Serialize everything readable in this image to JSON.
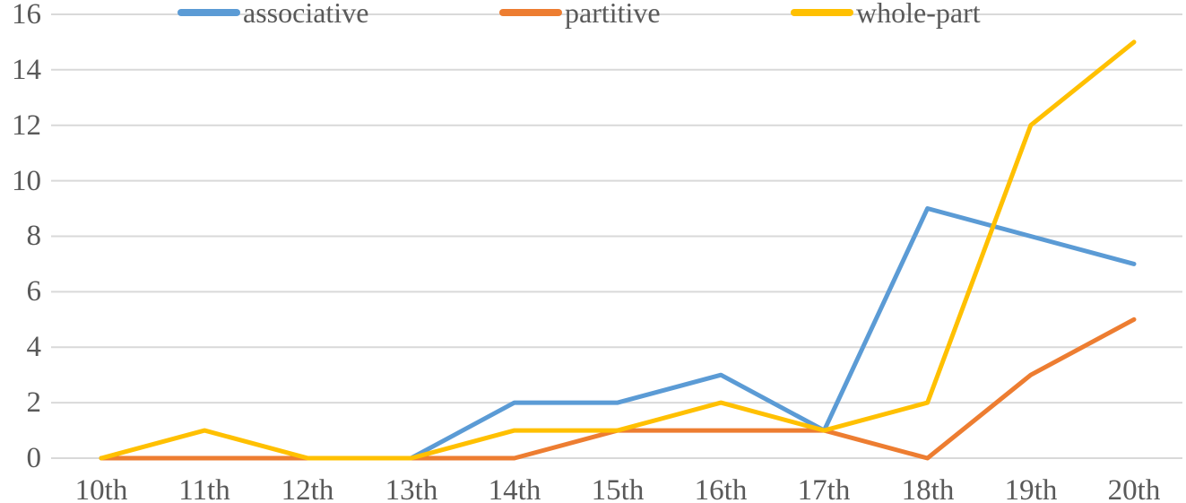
{
  "style": {
    "background": "#FFFFFF",
    "grid_color": "#D9D9D9",
    "text_color": "#595959",
    "series_colors": [
      "#5B9BD5",
      "#ED7D31",
      "#FFC000"
    ]
  },
  "chart_data": {
    "type": "line",
    "categories": [
      "10th",
      "11th",
      "12th",
      "13th",
      "14th",
      "15th",
      "16th",
      "17th",
      "18th",
      "19th",
      "20th"
    ],
    "series": [
      {
        "name": "associative",
        "color": "#5B9BD5",
        "values": [
          0,
          0,
          0,
          0,
          2,
          2,
          3,
          1,
          9,
          8,
          7
        ]
      },
      {
        "name": "partitive",
        "color": "#ED7D31",
        "values": [
          0,
          0,
          0,
          0,
          0,
          1,
          1,
          1,
          0,
          3,
          5
        ]
      },
      {
        "name": "whole-part",
        "color": "#FFC000",
        "values": [
          0,
          1,
          0,
          0,
          1,
          1,
          2,
          1,
          2,
          12,
          15
        ]
      }
    ],
    "ylim": [
      0,
      16
    ],
    "ytick_step": 2,
    "ytick_labels": [
      "0",
      "2",
      "4",
      "6",
      "8",
      "10",
      "12",
      "14",
      "16"
    ],
    "grid": true,
    "legend_position": "top"
  }
}
